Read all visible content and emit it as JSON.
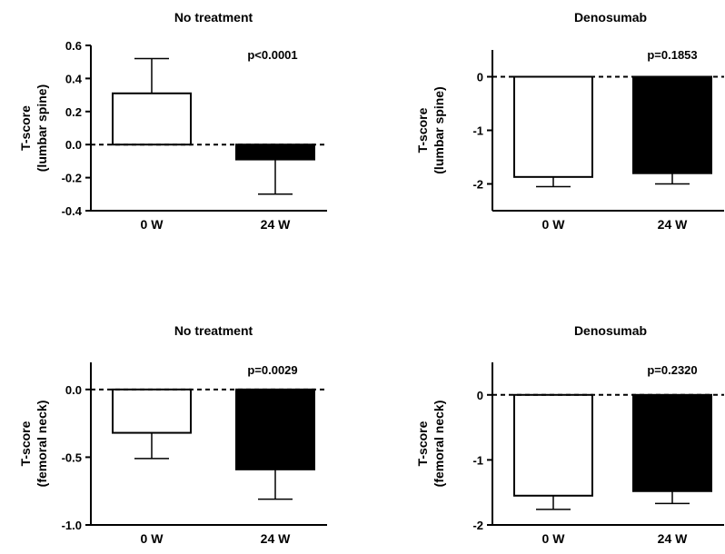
{
  "chart_data": [
    {
      "type": "bar",
      "title": "No treatment",
      "ylabel_lines": [
        "T-score",
        "(lumbar spine)"
      ],
      "categories": [
        "0 W",
        "24 W"
      ],
      "values": [
        0.31,
        -0.09
      ],
      "errors": [
        0.21,
        0.21
      ],
      "colors": [
        "#ffffff",
        "#000000"
      ],
      "ylim": [
        -0.4,
        0.6
      ],
      "yticks": [
        -0.4,
        -0.2,
        0.0,
        0.2,
        0.4,
        0.6
      ],
      "ytick_labels": [
        "-0.4",
        "-0.2",
        "0.0",
        "0.2",
        "0.4",
        "0.6"
      ],
      "annotation": "p<0.0001"
    },
    {
      "type": "bar",
      "title": "Denosumab",
      "ylabel_lines": [
        "T-score",
        "(lumbar spine)"
      ],
      "categories": [
        "0 W",
        "24 W"
      ],
      "values": [
        -1.87,
        -1.8
      ],
      "errors": [
        0.18,
        0.2
      ],
      "colors": [
        "#ffffff",
        "#000000"
      ],
      "ylim": [
        -2.5,
        0.5
      ],
      "yticks": [
        -2,
        -1,
        0
      ],
      "ytick_labels": [
        "-2",
        "-1",
        "0"
      ],
      "annotation": "p=0.1853"
    },
    {
      "type": "bar",
      "title": "No treatment",
      "ylabel_lines": [
        "T-score",
        "(femoral neck)"
      ],
      "categories": [
        "0 W",
        "24 W"
      ],
      "values": [
        -0.32,
        -0.59
      ],
      "errors": [
        0.19,
        0.22
      ],
      "colors": [
        "#ffffff",
        "#000000"
      ],
      "ylim": [
        -1.0,
        0.2
      ],
      "yticks": [
        -1.0,
        -0.5,
        0.0
      ],
      "ytick_labels": [
        "-1.0",
        "-0.5",
        "0.0"
      ],
      "annotation": "p=0.0029"
    },
    {
      "type": "bar",
      "title": "Denosumab",
      "ylabel_lines": [
        "T-score",
        "(femoral neck)"
      ],
      "categories": [
        "0 W",
        "24 W"
      ],
      "values": [
        -1.55,
        -1.48
      ],
      "errors": [
        0.21,
        0.19
      ],
      "colors": [
        "#ffffff",
        "#000000"
      ],
      "ylim": [
        -2.0,
        0.5
      ],
      "yticks": [
        -2,
        -1,
        0
      ],
      "ytick_labels": [
        "-2",
        "-1",
        "0"
      ],
      "annotation": "p=0.2320"
    }
  ]
}
